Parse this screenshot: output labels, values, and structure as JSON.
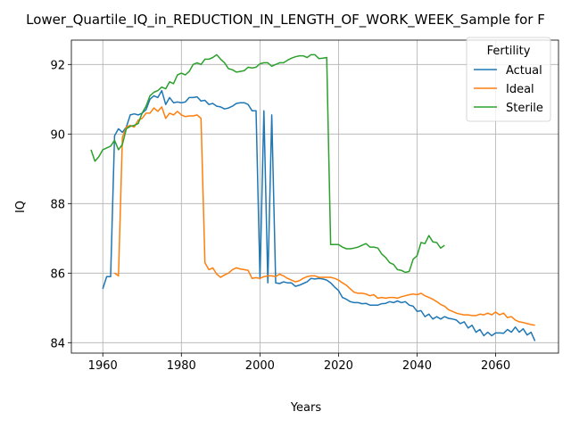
{
  "chart_data": {
    "type": "line",
    "title": "Lower_Quartile_IQ_in_REDUCTION_IN_LENGTH_OF_WORK_WEEK_Sample for F",
    "xlabel": "Years",
    "ylabel": "IQ",
    "xlim": [
      1952,
      2076
    ],
    "ylim": [
      83.7,
      92.7
    ],
    "xticks": [
      1960,
      1980,
      2000,
      2020,
      2040,
      2060
    ],
    "yticks": [
      84,
      86,
      88,
      90,
      92
    ],
    "grid": true,
    "legend": {
      "title": "Fertility",
      "placement": "top-right"
    },
    "series": [
      {
        "name": "Actual",
        "color": "#1f77b4",
        "points": [
          [
            1960,
            85.55
          ],
          [
            1961,
            85.9
          ],
          [
            1962,
            85.9
          ],
          [
            1963,
            89.95
          ],
          [
            1964,
            90.15
          ],
          [
            1965,
            90.05
          ],
          [
            1966,
            90.2
          ],
          [
            1967,
            90.55
          ],
          [
            1968,
            90.58
          ],
          [
            1969,
            90.55
          ],
          [
            1970,
            90.6
          ],
          [
            1971,
            90.7
          ],
          [
            1972,
            91.0
          ],
          [
            1973,
            91.1
          ],
          [
            1974,
            91.05
          ],
          [
            1975,
            91.25
          ],
          [
            1976,
            90.85
          ],
          [
            1977,
            91.05
          ],
          [
            1978,
            90.9
          ],
          [
            1979,
            90.92
          ],
          [
            1980,
            90.9
          ],
          [
            1981,
            90.92
          ],
          [
            1982,
            91.05
          ],
          [
            1983,
            91.05
          ],
          [
            1984,
            91.07
          ],
          [
            1985,
            90.95
          ],
          [
            1986,
            90.97
          ],
          [
            1987,
            90.85
          ],
          [
            1988,
            90.88
          ],
          [
            1989,
            90.8
          ],
          [
            1990,
            90.78
          ],
          [
            1991,
            90.72
          ],
          [
            1992,
            90.75
          ],
          [
            1993,
            90.8
          ],
          [
            1994,
            90.88
          ],
          [
            1995,
            90.9
          ],
          [
            1996,
            90.9
          ],
          [
            1997,
            90.85
          ],
          [
            1998,
            90.67
          ],
          [
            1999,
            90.67
          ],
          [
            2000,
            85.85
          ],
          [
            2001,
            90.67
          ],
          [
            2002,
            85.72
          ],
          [
            2003,
            90.55
          ],
          [
            2004,
            85.72
          ],
          [
            2005,
            85.7
          ],
          [
            2006,
            85.75
          ],
          [
            2007,
            85.72
          ],
          [
            2008,
            85.72
          ],
          [
            2009,
            85.62
          ],
          [
            2010,
            85.65
          ],
          [
            2011,
            85.7
          ],
          [
            2012,
            85.75
          ],
          [
            2013,
            85.85
          ],
          [
            2014,
            85.83
          ],
          [
            2015,
            85.85
          ],
          [
            2016,
            85.83
          ],
          [
            2017,
            85.8
          ],
          [
            2018,
            85.72
          ],
          [
            2019,
            85.6
          ],
          [
            2020,
            85.5
          ],
          [
            2021,
            85.3
          ],
          [
            2022,
            85.25
          ],
          [
            2023,
            85.18
          ],
          [
            2024,
            85.15
          ],
          [
            2025,
            85.15
          ],
          [
            2026,
            85.12
          ],
          [
            2027,
            85.13
          ],
          [
            2028,
            85.08
          ],
          [
            2029,
            85.08
          ],
          [
            2030,
            85.08
          ],
          [
            2031,
            85.12
          ],
          [
            2032,
            85.13
          ],
          [
            2033,
            85.18
          ],
          [
            2034,
            85.15
          ],
          [
            2035,
            85.2
          ],
          [
            2036,
            85.15
          ],
          [
            2037,
            85.18
          ],
          [
            2038,
            85.08
          ],
          [
            2039,
            85.05
          ],
          [
            2040,
            84.9
          ],
          [
            2041,
            84.92
          ],
          [
            2042,
            84.75
          ],
          [
            2043,
            84.82
          ],
          [
            2044,
            84.68
          ],
          [
            2045,
            84.75
          ],
          [
            2046,
            84.68
          ],
          [
            2047,
            84.75
          ],
          [
            2048,
            84.7
          ],
          [
            2049,
            84.68
          ],
          [
            2050,
            84.65
          ],
          [
            2051,
            84.55
          ],
          [
            2052,
            84.6
          ],
          [
            2053,
            84.42
          ],
          [
            2054,
            84.5
          ],
          [
            2055,
            84.3
          ],
          [
            2056,
            84.38
          ],
          [
            2057,
            84.2
          ],
          [
            2058,
            84.3
          ],
          [
            2059,
            84.2
          ],
          [
            2060,
            84.28
          ],
          [
            2061,
            84.28
          ],
          [
            2062,
            84.27
          ],
          [
            2063,
            84.38
          ],
          [
            2064,
            84.3
          ],
          [
            2065,
            84.45
          ],
          [
            2066,
            84.3
          ],
          [
            2067,
            84.4
          ],
          [
            2068,
            84.22
          ],
          [
            2069,
            84.3
          ],
          [
            2070,
            84.05
          ]
        ]
      },
      {
        "name": "Ideal",
        "color": "#ff7f0e",
        "points": [
          [
            1963,
            86.0
          ],
          [
            1964,
            85.92
          ],
          [
            1965,
            89.9
          ],
          [
            1966,
            90.2
          ],
          [
            1967,
            90.25
          ],
          [
            1968,
            90.2
          ],
          [
            1969,
            90.4
          ],
          [
            1970,
            90.45
          ],
          [
            1971,
            90.6
          ],
          [
            1972,
            90.6
          ],
          [
            1973,
            90.75
          ],
          [
            1974,
            90.65
          ],
          [
            1975,
            90.78
          ],
          [
            1976,
            90.45
          ],
          [
            1977,
            90.6
          ],
          [
            1978,
            90.55
          ],
          [
            1979,
            90.65
          ],
          [
            1980,
            90.55
          ],
          [
            1981,
            90.5
          ],
          [
            1982,
            90.52
          ],
          [
            1983,
            90.52
          ],
          [
            1984,
            90.55
          ],
          [
            1985,
            90.45
          ],
          [
            1986,
            86.3
          ],
          [
            1987,
            86.1
          ],
          [
            1988,
            86.15
          ],
          [
            1989,
            85.97
          ],
          [
            1990,
            85.88
          ],
          [
            1991,
            85.95
          ],
          [
            1992,
            86.0
          ],
          [
            1993,
            86.1
          ],
          [
            1994,
            86.15
          ],
          [
            1995,
            86.12
          ],
          [
            1996,
            86.1
          ],
          [
            1997,
            86.08
          ],
          [
            1998,
            85.85
          ],
          [
            1999,
            85.87
          ],
          [
            2000,
            85.85
          ],
          [
            2001,
            85.9
          ],
          [
            2002,
            85.92
          ],
          [
            2003,
            85.92
          ],
          [
            2004,
            85.9
          ],
          [
            2005,
            85.97
          ],
          [
            2006,
            85.92
          ],
          [
            2007,
            85.85
          ],
          [
            2008,
            85.8
          ],
          [
            2009,
            85.75
          ],
          [
            2010,
            85.78
          ],
          [
            2011,
            85.85
          ],
          [
            2012,
            85.9
          ],
          [
            2013,
            85.92
          ],
          [
            2014,
            85.92
          ],
          [
            2015,
            85.88
          ],
          [
            2016,
            85.88
          ],
          [
            2017,
            85.88
          ],
          [
            2018,
            85.88
          ],
          [
            2019,
            85.85
          ],
          [
            2020,
            85.8
          ],
          [
            2021,
            85.72
          ],
          [
            2022,
            85.65
          ],
          [
            2023,
            85.55
          ],
          [
            2024,
            85.45
          ],
          [
            2025,
            85.42
          ],
          [
            2026,
            85.42
          ],
          [
            2027,
            85.4
          ],
          [
            2028,
            85.35
          ],
          [
            2029,
            85.38
          ],
          [
            2030,
            85.28
          ],
          [
            2031,
            85.3
          ],
          [
            2032,
            85.28
          ],
          [
            2033,
            85.3
          ],
          [
            2034,
            85.3
          ],
          [
            2035,
            85.28
          ],
          [
            2036,
            85.32
          ],
          [
            2037,
            85.35
          ],
          [
            2038,
            85.38
          ],
          [
            2039,
            85.4
          ],
          [
            2040,
            85.38
          ],
          [
            2041,
            85.42
          ],
          [
            2042,
            85.35
          ],
          [
            2043,
            85.3
          ],
          [
            2044,
            85.25
          ],
          [
            2045,
            85.18
          ],
          [
            2046,
            85.1
          ],
          [
            2047,
            85.05
          ],
          [
            2048,
            84.95
          ],
          [
            2049,
            84.9
          ],
          [
            2050,
            84.85
          ],
          [
            2051,
            84.82
          ],
          [
            2052,
            84.8
          ],
          [
            2053,
            84.8
          ],
          [
            2054,
            84.78
          ],
          [
            2055,
            84.78
          ],
          [
            2056,
            84.82
          ],
          [
            2057,
            84.8
          ],
          [
            2058,
            84.85
          ],
          [
            2059,
            84.8
          ],
          [
            2060,
            84.88
          ],
          [
            2061,
            84.8
          ],
          [
            2062,
            84.85
          ],
          [
            2063,
            84.72
          ],
          [
            2064,
            84.75
          ],
          [
            2065,
            84.65
          ],
          [
            2066,
            84.6
          ],
          [
            2067,
            84.58
          ],
          [
            2068,
            84.55
          ],
          [
            2069,
            84.52
          ],
          [
            2070,
            84.5
          ]
        ]
      },
      {
        "name": "Sterile",
        "color": "#2ca02c",
        "points": [
          [
            1957,
            89.55
          ],
          [
            1958,
            89.22
          ],
          [
            1959,
            89.35
          ],
          [
            1960,
            89.55
          ],
          [
            1961,
            89.6
          ],
          [
            1962,
            89.65
          ],
          [
            1963,
            89.82
          ],
          [
            1964,
            89.55
          ],
          [
            1965,
            89.7
          ],
          [
            1966,
            90.15
          ],
          [
            1967,
            90.22
          ],
          [
            1968,
            90.25
          ],
          [
            1969,
            90.3
          ],
          [
            1970,
            90.6
          ],
          [
            1971,
            90.8
          ],
          [
            1972,
            91.1
          ],
          [
            1973,
            91.2
          ],
          [
            1974,
            91.25
          ],
          [
            1975,
            91.35
          ],
          [
            1976,
            91.3
          ],
          [
            1977,
            91.5
          ],
          [
            1978,
            91.45
          ],
          [
            1979,
            91.7
          ],
          [
            1980,
            91.75
          ],
          [
            1981,
            91.7
          ],
          [
            1982,
            91.8
          ],
          [
            1983,
            92.0
          ],
          [
            1984,
            92.05
          ],
          [
            1985,
            92.0
          ],
          [
            1986,
            92.15
          ],
          [
            1987,
            92.15
          ],
          [
            1988,
            92.2
          ],
          [
            1989,
            92.28
          ],
          [
            1990,
            92.15
          ],
          [
            1991,
            92.05
          ],
          [
            1992,
            91.88
          ],
          [
            1993,
            91.85
          ],
          [
            1994,
            91.78
          ],
          [
            1995,
            91.8
          ],
          [
            1996,
            91.82
          ],
          [
            1997,
            91.92
          ],
          [
            1998,
            91.9
          ],
          [
            1999,
            91.92
          ],
          [
            2000,
            92.02
          ],
          [
            2001,
            92.05
          ],
          [
            2002,
            92.05
          ],
          [
            2003,
            91.95
          ],
          [
            2004,
            92.0
          ],
          [
            2005,
            92.05
          ],
          [
            2006,
            92.05
          ],
          [
            2007,
            92.12
          ],
          [
            2008,
            92.18
          ],
          [
            2009,
            92.22
          ],
          [
            2010,
            92.25
          ],
          [
            2011,
            92.25
          ],
          [
            2012,
            92.2
          ],
          [
            2013,
            92.28
          ],
          [
            2014,
            92.28
          ],
          [
            2015,
            92.17
          ],
          [
            2016,
            92.18
          ],
          [
            2017,
            92.2
          ],
          [
            2018,
            86.82
          ],
          [
            2019,
            86.82
          ],
          [
            2020,
            86.82
          ],
          [
            2021,
            86.75
          ],
          [
            2022,
            86.7
          ],
          [
            2023,
            86.7
          ],
          [
            2024,
            86.72
          ],
          [
            2025,
            86.75
          ],
          [
            2026,
            86.8
          ],
          [
            2027,
            86.85
          ],
          [
            2028,
            86.75
          ],
          [
            2029,
            86.75
          ],
          [
            2030,
            86.72
          ],
          [
            2031,
            86.55
          ],
          [
            2032,
            86.45
          ],
          [
            2033,
            86.3
          ],
          [
            2034,
            86.25
          ],
          [
            2035,
            86.1
          ],
          [
            2036,
            86.08
          ],
          [
            2037,
            86.02
          ],
          [
            2038,
            86.05
          ],
          [
            2039,
            86.4
          ],
          [
            2040,
            86.5
          ],
          [
            2041,
            86.88
          ],
          [
            2042,
            86.85
          ],
          [
            2043,
            87.08
          ],
          [
            2044,
            86.9
          ],
          [
            2045,
            86.88
          ],
          [
            2046,
            86.72
          ],
          [
            2047,
            86.8
          ]
        ]
      }
    ]
  }
}
